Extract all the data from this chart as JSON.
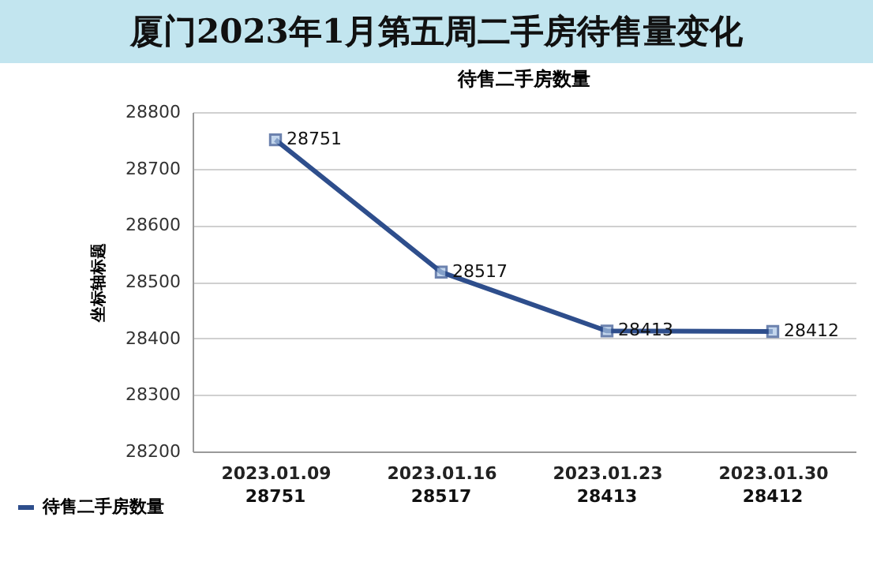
{
  "chart_data": {
    "type": "line",
    "title": "厦门2023年1月第五周二手房待售量变化",
    "subtitle": "待售二手房数量",
    "ylabel": "坐标轴标题",
    "categories": [
      "2023.01.09",
      "2023.01.16",
      "2023.01.23",
      "2023.01.30"
    ],
    "series": [
      {
        "name": "待售二手房数量",
        "color": "#2e4e8c",
        "values": [
          28751,
          28517,
          28413,
          28412
        ]
      }
    ],
    "annotations": [
      {
        "text": "28751",
        "x": "2023.01.09",
        "y": 28751
      },
      {
        "text": "28517",
        "x": "2023.01.16",
        "y": 28517
      },
      {
        "text": "28413",
        "x": "2023.01.23",
        "y": 28413
      },
      {
        "text": "28412",
        "x": "2023.01.30",
        "y": 28412
      }
    ],
    "ylim": [
      28200,
      28800
    ],
    "yticks": [
      28200,
      28300,
      28400,
      28500,
      28600,
      28700,
      28800
    ],
    "grid": "y",
    "marker": "square",
    "line_style": "solid",
    "data_labels": true,
    "legend": "bottom left"
  }
}
